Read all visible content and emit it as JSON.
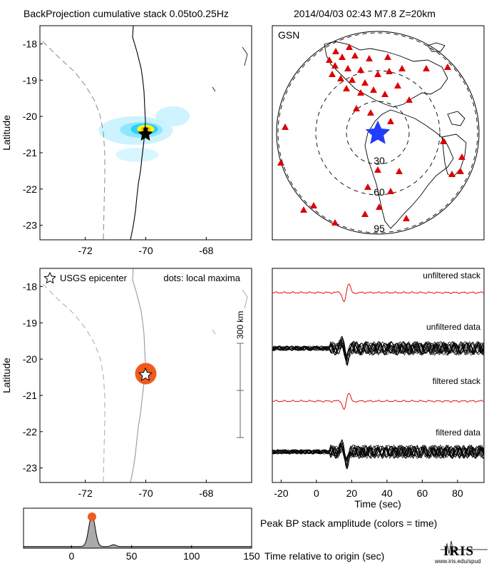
{
  "header": {
    "title": "BackProjection cumulative stack 0.05to0.25Hz",
    "event": "2014/04/03 02:43  M7.8  Z=20km"
  },
  "chart_data": [
    {
      "type": "heatmap",
      "name": "top-left-map",
      "ylabel": "Latitude",
      "xlim": [
        -73.5,
        -66.5
      ],
      "ylim": [
        -23.4,
        -17.5
      ],
      "xticks": [
        "-72",
        "-70",
        "-68"
      ],
      "yticks": [
        "-18",
        "-19",
        "-20",
        "-21",
        "-22",
        "-23"
      ],
      "epicenter": {
        "lon": -70.0,
        "lat": -20.4
      },
      "peak": {
        "lon": -70.05,
        "lat": -20.35
      },
      "colormap": [
        "#c8f2ff",
        "#8ee6ff",
        "#2ad0ff",
        "#ffff00",
        "#ffbf00",
        "#1a1a00"
      ]
    },
    {
      "type": "scatter",
      "name": "station-map",
      "label": "GSN",
      "rings_deg": [
        "30",
        "60",
        "95"
      ],
      "source": {
        "color": "#1f3cff"
      },
      "station_color": "#dd0000"
    },
    {
      "type": "scatter",
      "name": "bottom-left-map",
      "ylabel": "Latitude",
      "xlim": [
        -73.5,
        -66.5
      ],
      "ylim": [
        -23.4,
        -17.5
      ],
      "xticks": [
        "-72",
        "-70",
        "-68"
      ],
      "yticks": [
        "-18",
        "-19",
        "-20",
        "-21",
        "-22",
        "-23"
      ],
      "legend_epicenter": "USGS epicenter",
      "legend_dots": "dots: local maxima",
      "scalebar_label": "300 km",
      "maxima": [
        {
          "lon": -70.0,
          "lat": -20.4,
          "color": "#f05a1e"
        }
      ],
      "epicenter": {
        "lon": -70.0,
        "lat": -20.4
      }
    },
    {
      "type": "line",
      "name": "waveforms",
      "xlabel": "Time (sec)",
      "xlim": [
        -25,
        95
      ],
      "xticks": [
        "-20",
        "0",
        "20",
        "40",
        "60",
        "80"
      ],
      "traces": [
        "unfiltered stack",
        "unfiltered data",
        "filtered stack",
        "filtered data"
      ],
      "stack_color": "#e01010"
    },
    {
      "type": "area",
      "name": "peak-amplitude",
      "xlabel": "Time relative to origin (sec)",
      "xlim": [
        -40,
        150
      ],
      "xticks": [
        "0",
        "50",
        "100",
        "150"
      ],
      "peak": {
        "time": 17,
        "value": 1.0,
        "color": "#f05a1e"
      },
      "baseline": 0.05,
      "secondary": {
        "time": 35,
        "value": 0.06
      }
    }
  ],
  "caption": {
    "peak_label": "Peak BP stack amplitude (colors = time)"
  },
  "logo": {
    "text": "IRIS",
    "url": "www.iris.edu/spud"
  }
}
